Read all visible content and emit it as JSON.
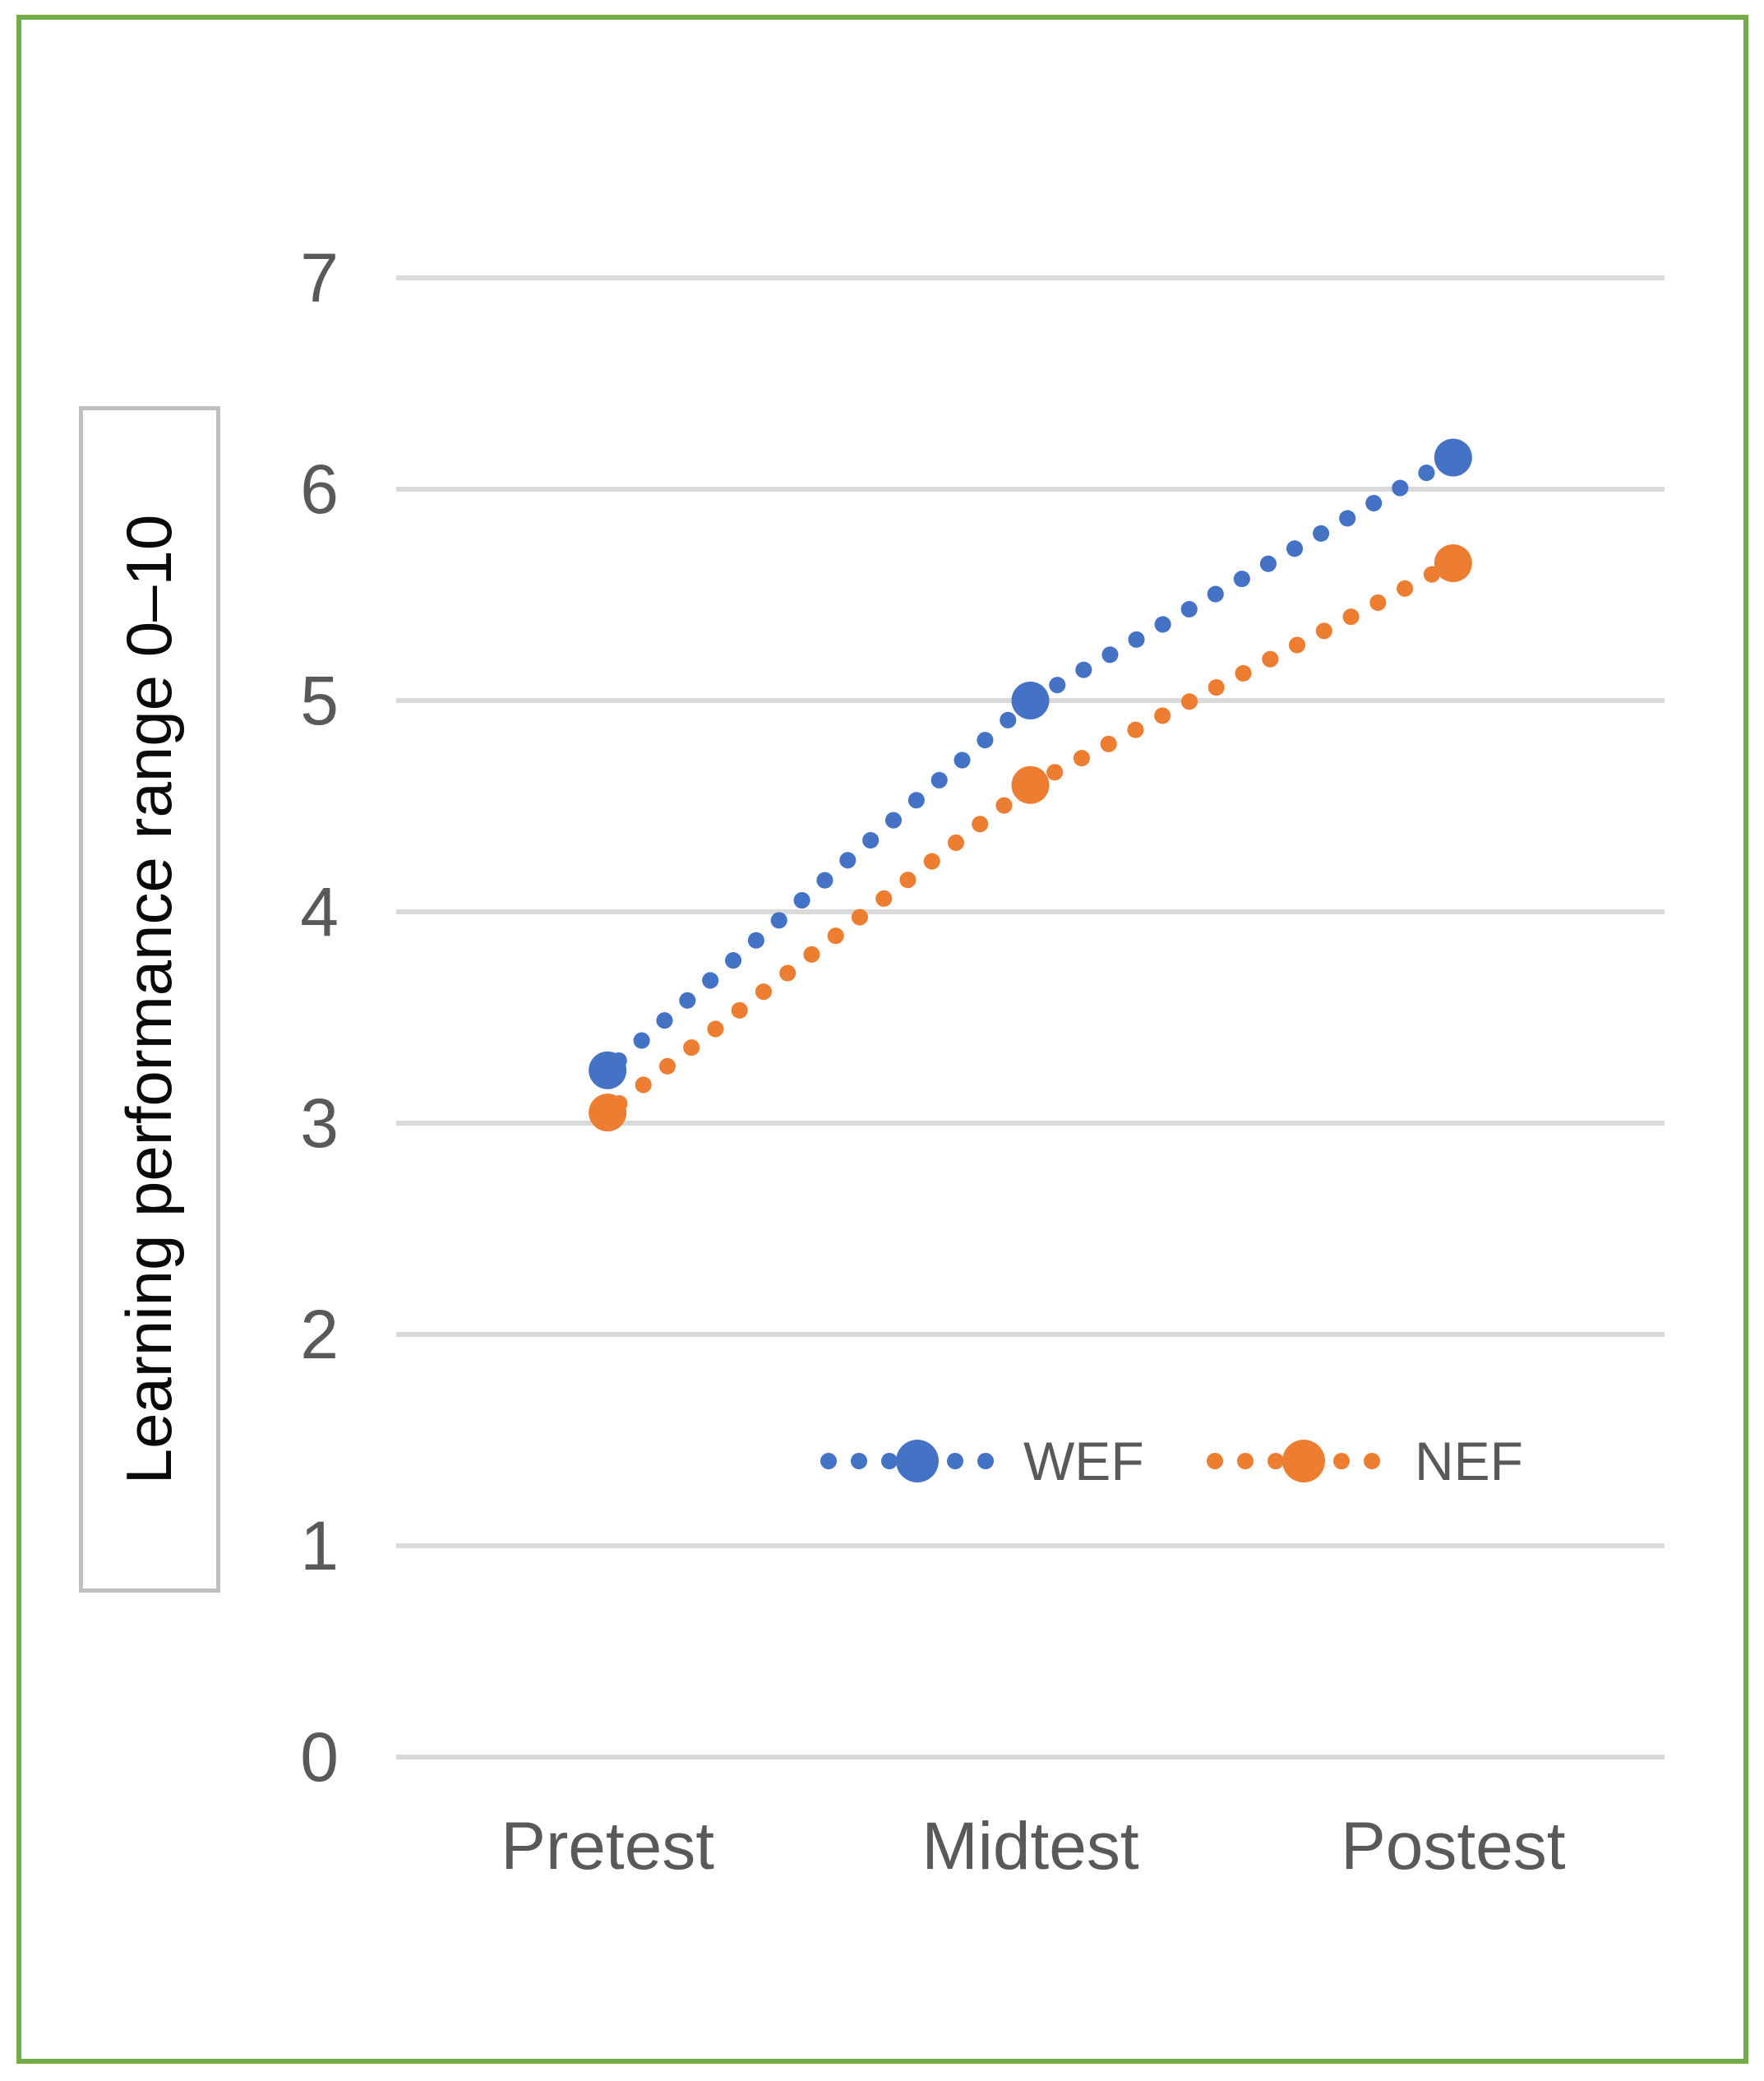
{
  "figure": {
    "frame_border_color": "#70AD47",
    "background_color": "#FFFFFF",
    "axis_title_box_border_color": "#BFBFBF",
    "gridline_color": "#D9D9D9",
    "tick_label_color": "#595959"
  },
  "chart_data": {
    "type": "line",
    "title": "",
    "xlabel": "",
    "ylabel": "Learning performance range 0–10",
    "categories": [
      "Pretest",
      "Midtest",
      "Postest"
    ],
    "series": [
      {
        "name": "WEF",
        "color": "#4472C4",
        "values": [
          3.25,
          5.0,
          6.15
        ]
      },
      {
        "name": "NEF",
        "color": "#ED7D31",
        "values": [
          3.05,
          4.6,
          5.65
        ]
      }
    ],
    "ylim": [
      0,
      7
    ],
    "yticks": [
      0,
      1,
      2,
      3,
      4,
      5,
      6,
      7
    ],
    "grid": true,
    "line_style": "dotted",
    "marker": "filled-circle-at-category-points",
    "legend_position": "inside-lower-right",
    "legend_entries": [
      "WEF",
      "NEF"
    ]
  }
}
